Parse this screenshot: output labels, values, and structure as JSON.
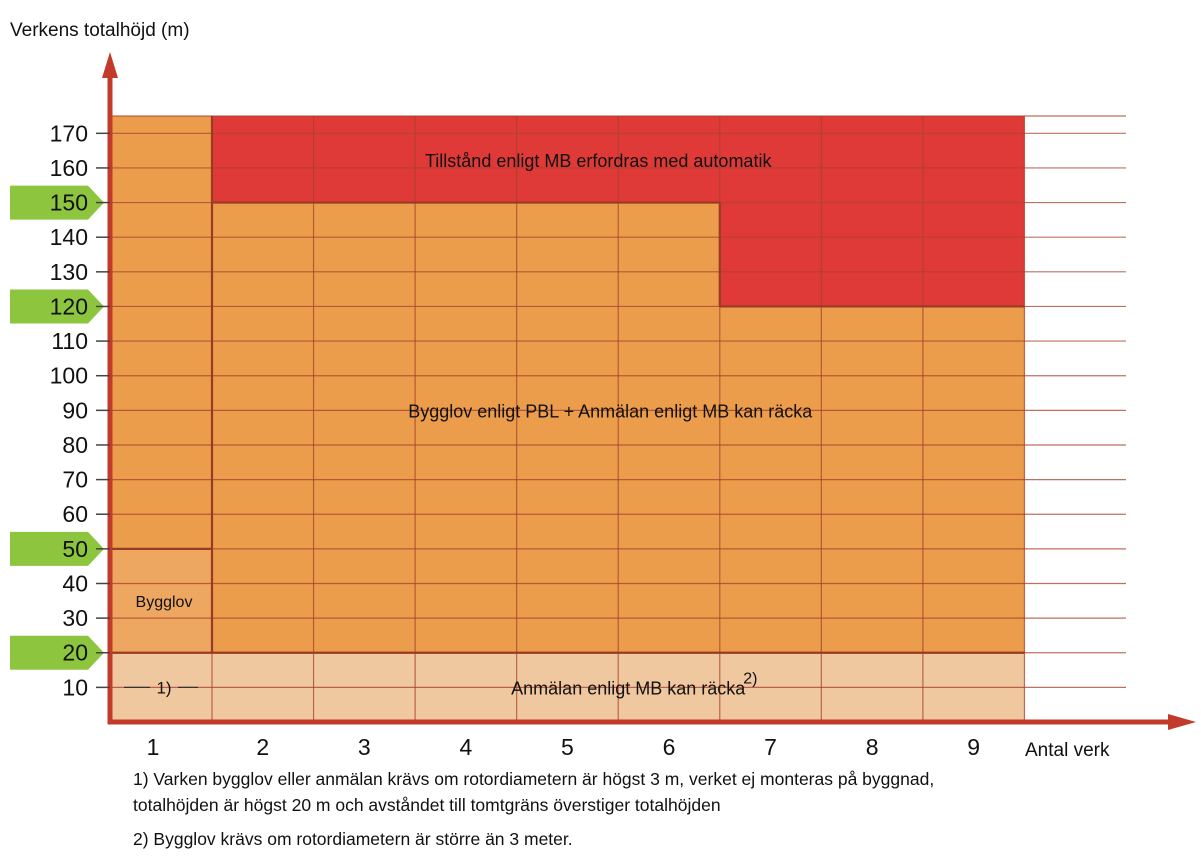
{
  "chart_data": {
    "type": "heatmap",
    "ylabel": "Verkens totalhöjd (m)",
    "xlabel": "Antal verk",
    "x_categories": [
      "1",
      "2",
      "3",
      "4",
      "5",
      "6",
      "7",
      "8",
      "9"
    ],
    "y_ticks": [
      10,
      20,
      30,
      40,
      50,
      60,
      70,
      80,
      90,
      100,
      110,
      120,
      130,
      140,
      150,
      160,
      170
    ],
    "highlighted_y_ticks": [
      20,
      50,
      120,
      150
    ],
    "ylim": [
      0,
      175
    ],
    "grid": true,
    "zones": [
      {
        "name": "anmalan",
        "label": "Anmälan enligt MB kan räcka",
        "superscript": "2)",
        "color": "#f0c8a0",
        "x_from": 2,
        "x_to": 10,
        "y_from": 0,
        "y_to": 20
      },
      {
        "name": "sub20",
        "label": "1)",
        "color": "#f0c8a0",
        "x_from": 1,
        "x_to": 2,
        "y_from": 0,
        "y_to": 20
      },
      {
        "name": "bygglov",
        "label": "Bygglov",
        "color": "#eda761",
        "x_from": 1,
        "x_to": 2,
        "y_from": 20,
        "y_to": 50
      },
      {
        "name": "bygglov-high",
        "label": "",
        "color": "#eb9d4c",
        "x_from": 1,
        "x_to": 2,
        "y_from": 50,
        "y_to": 175
      },
      {
        "name": "bygglov-pbl",
        "label": "Bygglov enligt PBL + Anmälan enligt MB kan räcka",
        "color": "#eb9d4c",
        "x_from": 2,
        "x_to": 7,
        "y_from": 20,
        "y_to": 150
      },
      {
        "name": "bygglov-pbl-right",
        "label": "",
        "color": "#eb9d4c",
        "x_from": 7,
        "x_to": 10,
        "y_from": 20,
        "y_to": 120
      },
      {
        "name": "tillstand",
        "label": "Tillstånd enligt MB erfordras med automatik",
        "color": "#df3a38",
        "x_from": 2,
        "x_to": 10,
        "y_from": 150,
        "y_to": 175
      },
      {
        "name": "tillstand-right",
        "label": "",
        "color": "#df3a38",
        "x_from": 7,
        "x_to": 10,
        "y_from": 120,
        "y_to": 150
      }
    ]
  },
  "colors": {
    "axis": "#c23a2a",
    "grid": "#a8402c",
    "highlight_tab": "#8dc53e"
  },
  "footnotes": {
    "note1_line1": "1) Varken bygglov eller anmälan krävs om rotordiametern är högst 3 m, verket ej monteras på byggnad,",
    "note1_line2": "totalhöjden är högst 20 m och avståndet till tomtgräns överstiger totalhöjden",
    "note2": "2) Bygglov krävs om rotordiametern är större än 3 meter."
  }
}
